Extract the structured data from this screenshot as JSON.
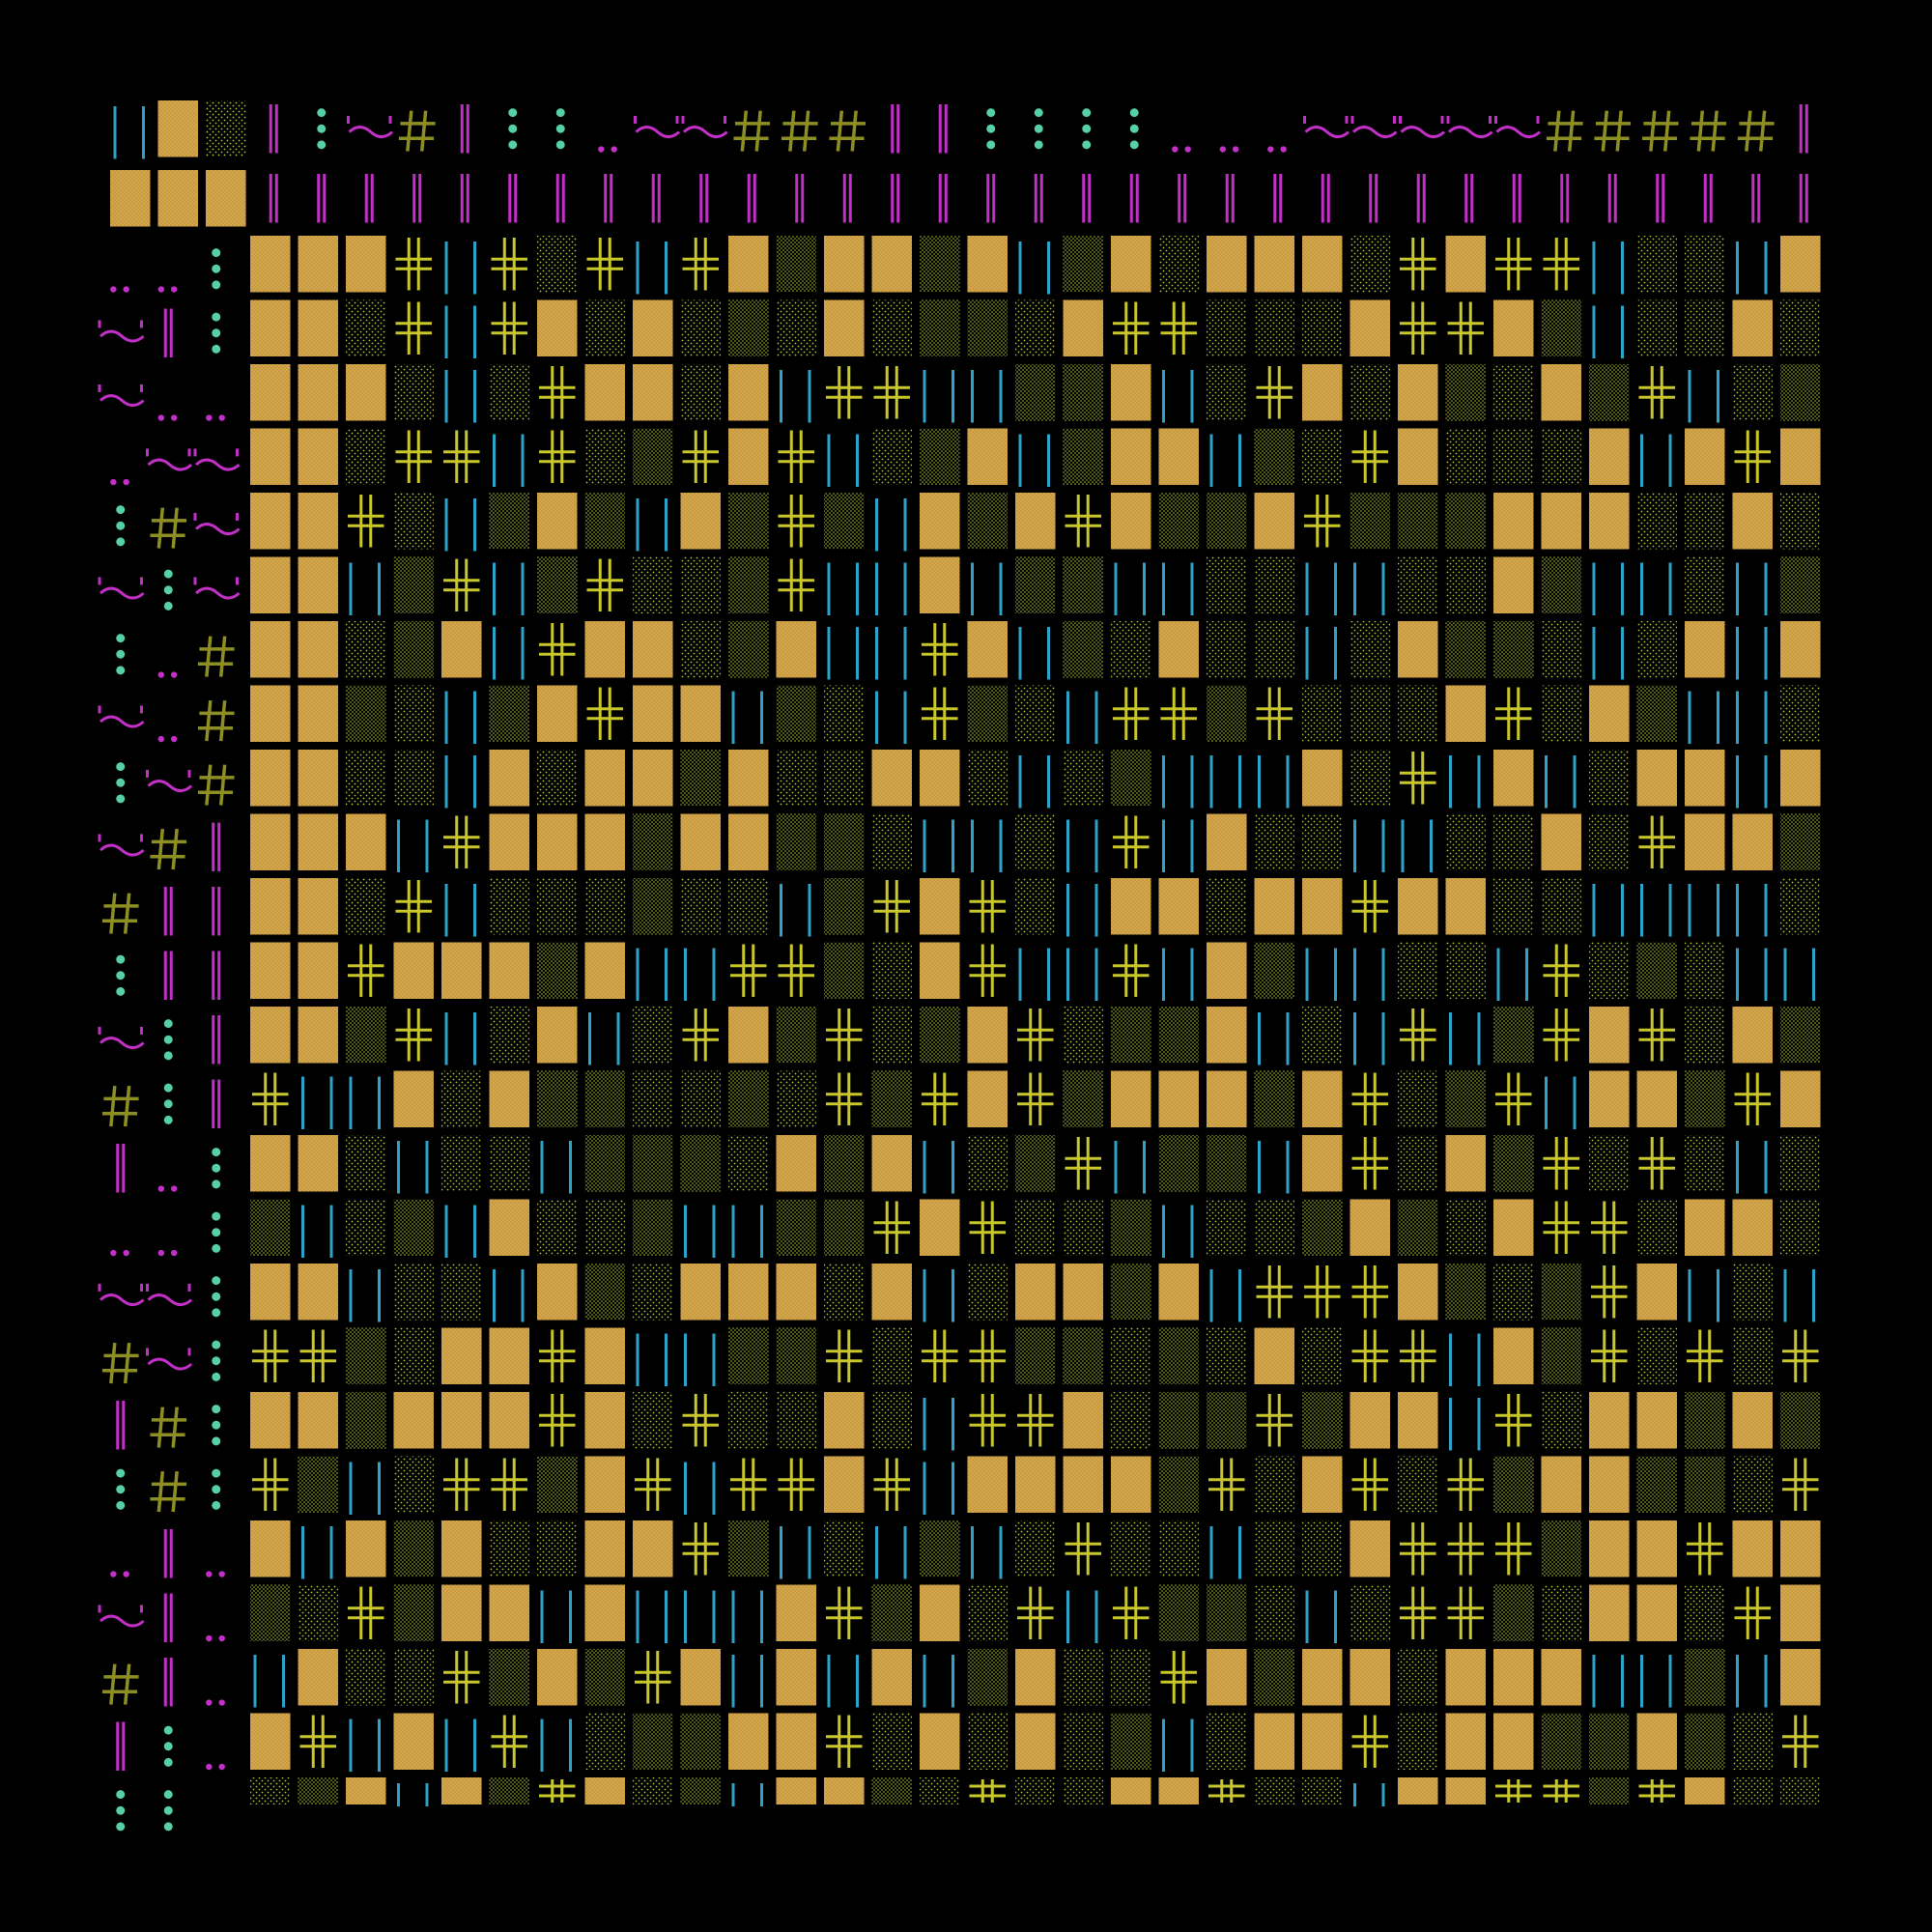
{
  "colors": {
    "background": "#000000",
    "gold": "#D6A84A",
    "olive": "#8E8F22",
    "lime": "#B6C63B",
    "teal": "#55D0A8",
    "cyan": "#2EA3C9",
    "magenta": "#C330C8",
    "yellow": "#C9C72C"
  },
  "glyphs": {
    "header_left_top": [
      "bars",
      "gold-block",
      "light-dots",
      "mag-bar",
      "teal-dots",
      "tilde",
      "hash",
      "mag-bar",
      "teal-dots",
      "teal-dots",
      "mag-dots",
      "tilde",
      "tilde",
      "hash",
      "hash",
      "hash",
      "mag-bar",
      "mag-bar",
      "teal-dots",
      "teal-dots",
      "teal-dots",
      "teal-dots",
      "mag-dots",
      "mag-dots",
      "mag-dots",
      "tilde",
      "tilde",
      "tilde",
      "tilde",
      "tilde",
      "hash",
      "hash",
      "hash",
      "hash",
      "hash",
      "mag-bar"
    ],
    "left_column": [
      [
        "mag-dots",
        "mag-dots",
        "teal-dots"
      ],
      [
        "tilde",
        "mag-bar",
        "teal-dots"
      ],
      [
        "tilde",
        "mag-dots",
        "mag-dots"
      ],
      [
        "mag-dots",
        "tilde",
        "tilde"
      ],
      [
        "teal-dots",
        "hash",
        "tilde"
      ],
      [
        "tilde",
        "teal-dots",
        "tilde"
      ],
      [
        "teal-dots",
        "mag-dots",
        "hash"
      ],
      [
        "tilde",
        "mag-dots",
        "hash"
      ],
      [
        "teal-dots",
        "tilde",
        "hash"
      ],
      [
        "tilde",
        "hash",
        "mag-bar"
      ],
      [
        "hash",
        "mag-bar",
        "mag-bar"
      ],
      [
        "teal-dots",
        "mag-bar",
        "mag-bar"
      ],
      [
        "tilde",
        "teal-dots",
        "mag-bar"
      ],
      [
        "hash",
        "teal-dots",
        "mag-bar"
      ],
      [
        "mag-bar",
        "mag-dots",
        "teal-dots"
      ],
      [
        "mag-dots",
        "mag-dots",
        "teal-dots"
      ],
      [
        "tilde",
        "tilde",
        "teal-dots"
      ],
      [
        "hash",
        "tilde",
        "teal-dots"
      ],
      [
        "mag-bar",
        "hash",
        "teal-dots"
      ],
      [
        "teal-dots",
        "hash",
        "teal-dots"
      ],
      [
        "mag-dots",
        "mag-bar",
        "mag-dots"
      ],
      [
        "tilde",
        "mag-bar",
        "mag-dots"
      ],
      [
        "hash",
        "mag-bar",
        "mag-dots"
      ],
      [
        "mag-bar",
        "teal-dots",
        "mag-dots"
      ],
      [
        "teal-dots",
        "teal-dots",
        ""
      ]
    ]
  }
}
